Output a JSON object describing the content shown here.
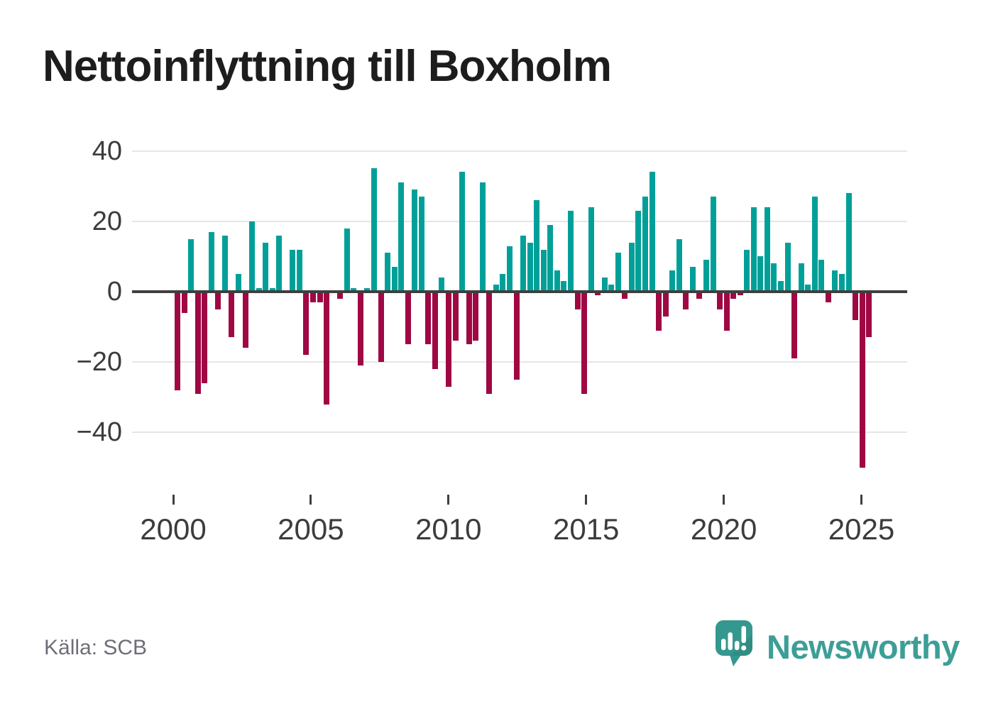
{
  "title": "Nettoinflyttning till Boxholm",
  "source": "Källa: SCB",
  "branding": {
    "wordmark": "Newsworthy"
  },
  "colors": {
    "positive": "#00a099",
    "negative": "#9f0843",
    "axis": "#3f3f3f",
    "grid": "#e6e6e6",
    "title_text": "#1d1d1d",
    "tick_label": "#3c3c3c",
    "source_text": "#6e6e78",
    "brand": "#3d9e97"
  },
  "chart_data": {
    "type": "bar",
    "title": "Nettoinflyttning till Boxholm",
    "frequency": "quarterly",
    "start_period": "2000-Q1",
    "last_period": "2025-Q3",
    "x_tick_labels": [
      "2000",
      "2005",
      "2010",
      "2015",
      "2020",
      "2025"
    ],
    "y_ticks": [
      40,
      20,
      0,
      -20,
      -40
    ],
    "y_tick_labels": [
      "40",
      "20",
      "0",
      "−20",
      "−40"
    ],
    "ylim": [
      -52,
      42
    ],
    "grid": "horizontal",
    "legend": "none",
    "series": [
      {
        "name": "Nettoinflyttning",
        "values": [
          -28,
          -6,
          15,
          -29,
          -26,
          17,
          -5,
          16,
          -13,
          5,
          -16,
          20,
          1,
          14,
          1,
          16,
          0,
          12,
          12,
          -18,
          -3,
          -3,
          -32,
          0,
          -2,
          18,
          1,
          -21,
          1,
          35,
          -20,
          11,
          7,
          31,
          -15,
          29,
          27,
          -15,
          -22,
          4,
          -27,
          -14,
          34,
          -15,
          -14,
          31,
          -29,
          2,
          5,
          13,
          -25,
          16,
          14,
          26,
          12,
          19,
          6,
          3,
          23,
          -5,
          -29,
          24,
          -1,
          4,
          2,
          11,
          -2,
          14,
          23,
          27,
          34,
          -11,
          -7,
          6,
          15,
          -5,
          7,
          -2,
          9,
          27,
          -5,
          -11,
          -2,
          -1,
          12,
          24,
          10,
          24,
          8,
          3,
          14,
          -19,
          8,
          2,
          27,
          9,
          -3,
          6,
          5,
          28,
          -8,
          -50,
          -13
        ]
      }
    ]
  }
}
